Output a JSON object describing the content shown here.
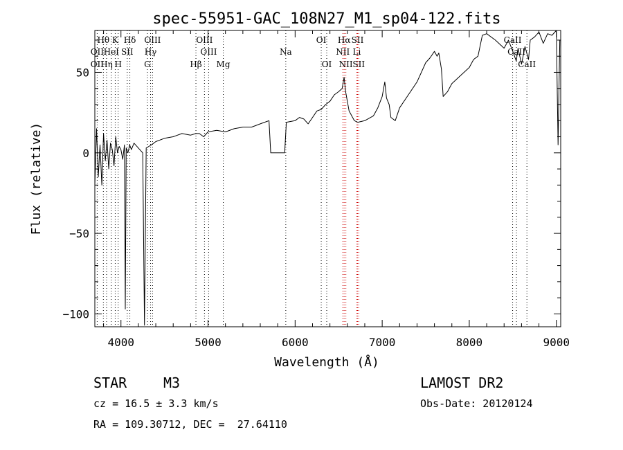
{
  "chart_data": {
    "type": "line",
    "title": "spec-55951-GAC_108N27_M1_sp04-122.fits",
    "xlabel": "Wavelength (Å)",
    "ylabel": "Flux (relative)",
    "xlim": [
      3700,
      9050
    ],
    "ylim": [
      -108,
      76
    ],
    "xticks": [
      4000,
      5000,
      6000,
      7000,
      8000,
      9000
    ],
    "yticks": [
      -100,
      -50,
      0,
      50
    ],
    "grid": false,
    "legend": "none",
    "series": [
      {
        "x": [
          3700,
          3720,
          3740,
          3760,
          3780,
          3800,
          3820,
          3840,
          3860,
          3880,
          3900,
          3920,
          3940,
          3960,
          3980,
          4000,
          4020,
          4040,
          4050,
          4060,
          4080,
          4100,
          4120,
          4150,
          4200,
          4250,
          4270,
          4290,
          4320,
          4350,
          4400,
          4500,
          4600,
          4700,
          4800,
          4860,
          4900,
          4950,
          5000,
          5100,
          5200,
          5300,
          5400,
          5500,
          5600,
          5700,
          5720,
          5800,
          5880,
          5900,
          6000,
          6050,
          6100,
          6150,
          6200,
          6250,
          6300,
          6350,
          6400,
          6450,
          6500,
          6540,
          6563,
          6580,
          6620,
          6680,
          6720,
          6800,
          6900,
          6950,
          7000,
          7030,
          7050,
          7080,
          7100,
          7150,
          7200,
          7300,
          7400,
          7500,
          7550,
          7600,
          7630,
          7650,
          7680,
          7700,
          7750,
          7800,
          7900,
          8000,
          8050,
          8100,
          8150,
          8200,
          8300,
          8400,
          8450,
          8500,
          8540,
          8560,
          8600,
          8640,
          8680,
          8700,
          8750,
          8800,
          8850,
          8900,
          8950,
          9000,
          9020,
          9040
        ],
        "values": [
          -20,
          15,
          -15,
          5,
          -20,
          12,
          -5,
          8,
          -10,
          6,
          2,
          -8,
          10,
          0,
          4,
          2,
          -4,
          5,
          -97,
          3,
          0,
          5,
          2,
          6,
          3,
          0,
          -107,
          3,
          4,
          5,
          7,
          9,
          10,
          12,
          11,
          12,
          12,
          10,
          13,
          14,
          13,
          15,
          16,
          16,
          18,
          20,
          0,
          0,
          0,
          19,
          20,
          22,
          21,
          18,
          22,
          26,
          27,
          30,
          32,
          36,
          38,
          40,
          47,
          38,
          26,
          20,
          19,
          20,
          23,
          28,
          35,
          44,
          34,
          30,
          22,
          20,
          28,
          36,
          44,
          56,
          59,
          63,
          60,
          62,
          52,
          35,
          38,
          43,
          48,
          53,
          58,
          60,
          73,
          74,
          70,
          65,
          70,
          63,
          57,
          65,
          55,
          66,
          58,
          70,
          72,
          75,
          68,
          74,
          73,
          77,
          5,
          70
        ]
      }
    ],
    "annotations": [
      {
        "label": "Hθ",
        "x": 3798,
        "row": 1,
        "color": "#000000"
      },
      {
        "label": "K",
        "x": 3934,
        "row": 1,
        "color": "#000000"
      },
      {
        "label": "Hδ",
        "x": 4102,
        "row": 1,
        "color": "#000000"
      },
      {
        "label": "OIII",
        "x": 4363,
        "row": 1,
        "color": "#000000"
      },
      {
        "label": "OIII",
        "x": 4959,
        "row": 1,
        "color": "#000000"
      },
      {
        "label": "OI",
        "x": 6300,
        "row": 1,
        "color": "#000000"
      },
      {
        "label": "Hα",
        "x": 6563,
        "row": 1,
        "color": "#cc0000"
      },
      {
        "label": "SII",
        "x": 6717,
        "row": 1,
        "color": "#cc0000"
      },
      {
        "label": "CaII",
        "x": 8498,
        "row": 1,
        "color": "#000000"
      },
      {
        "label": "OII",
        "x": 3727,
        "row": 2,
        "color": "#000000"
      },
      {
        "label": "HeI",
        "x": 3889,
        "row": 2,
        "color": "#000000"
      },
      {
        "label": "SII",
        "x": 4072,
        "row": 2,
        "color": "#000000"
      },
      {
        "label": "Hγ",
        "x": 4340,
        "row": 2,
        "color": "#000000"
      },
      {
        "label": "OIII",
        "x": 5007,
        "row": 2,
        "color": "#000000"
      },
      {
        "label": "Na",
        "x": 5893,
        "row": 2,
        "color": "#000000"
      },
      {
        "label": "NII",
        "x": 6548,
        "row": 2,
        "color": "#cc0000"
      },
      {
        "label": "Li",
        "x": 6708,
        "row": 2,
        "color": "#cc0000"
      },
      {
        "label": "CaII",
        "x": 8542,
        "row": 2,
        "color": "#000000"
      },
      {
        "label": "OII",
        "x": 3727,
        "row": 3,
        "color": "#000000"
      },
      {
        "label": "Hη",
        "x": 3835,
        "row": 3,
        "color": "#000000"
      },
      {
        "label": "H",
        "x": 3968,
        "row": 3,
        "color": "#000000"
      },
      {
        "label": "G",
        "x": 4304,
        "row": 3,
        "color": "#000000"
      },
      {
        "label": "Hβ",
        "x": 4861,
        "row": 3,
        "color": "#000000"
      },
      {
        "label": "Mg",
        "x": 5175,
        "row": 3,
        "color": "#000000"
      },
      {
        "label": "OI",
        "x": 6363,
        "row": 3,
        "color": "#000000"
      },
      {
        "label": "NII",
        "x": 6583,
        "row": 3,
        "color": "#cc0000"
      },
      {
        "label": "SII",
        "x": 6731,
        "row": 3,
        "color": "#cc0000"
      },
      {
        "label": "CaII",
        "x": 8662,
        "row": 3,
        "color": "#000000"
      }
    ]
  },
  "info": {
    "class_label": "STAR",
    "subclass": "M3",
    "cz": "cz = 16.5 ± 3.3 km/s",
    "coords": "RA = 109.30712, DEC =  27.64110",
    "survey": "LAMOST DR2",
    "obs_date": "Obs-Date: 20120124"
  }
}
